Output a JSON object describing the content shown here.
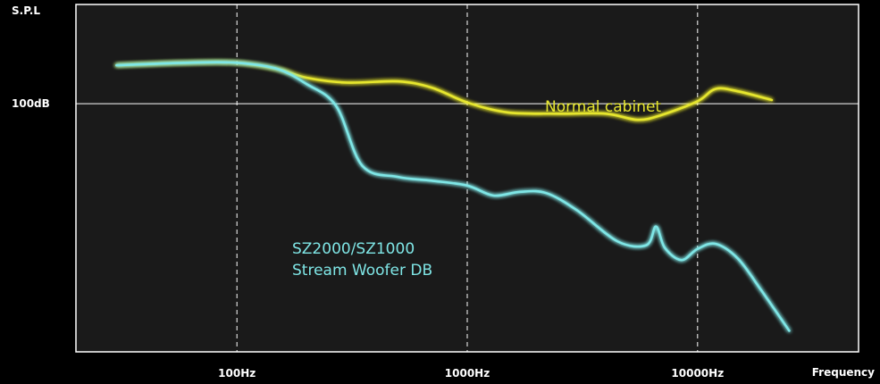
{
  "chart_data": {
    "type": "line",
    "xlabel": "Frequency",
    "ylabel": "S.P.L",
    "x_scale": "log",
    "xlim": [
      20,
      50000
    ],
    "x_ticks": [
      {
        "value": 100,
        "label": "100Hz"
      },
      {
        "value": 1000,
        "label": "1000Hz"
      },
      {
        "value": 10000,
        "label": "10000Hz"
      }
    ],
    "y_ticks": [
      {
        "value": 100,
        "label": "100dB"
      }
    ],
    "ylim": [
      80,
      108
    ],
    "grid": true,
    "colors": {
      "background": "#1a1a1a",
      "frame": "#ffffff",
      "grid": "#ffffff"
    },
    "series": [
      {
        "name": "Normal cabinet",
        "label_lines": [
          "Normal cabinet"
        ],
        "color": "#e6e62e",
        "x": [
          30,
          60,
          100,
          150,
          200,
          300,
          500,
          700,
          1000,
          1500,
          2500,
          4000,
          5500,
          7000,
          10000,
          12000,
          15000,
          21000
        ],
        "y": [
          103.1,
          103.3,
          103.3,
          102.8,
          102.1,
          101.7,
          101.8,
          101.3,
          100.1,
          99.3,
          99.2,
          99.2,
          98.7,
          99.1,
          100.2,
          101.2,
          101.0,
          100.3
        ]
      },
      {
        "name": "SZ2000/SZ1000 Stream Woofer DB",
        "label_lines": [
          "SZ2000/SZ1000",
          "Stream Woofer DB"
        ],
        "color": "#7fe6e6",
        "x": [
          30,
          60,
          100,
          150,
          200,
          270,
          350,
          500,
          700,
          1000,
          1300,
          1700,
          2200,
          3000,
          4500,
          6000,
          6600,
          7200,
          8500,
          10000,
          12000,
          15000,
          19000,
          25000
        ],
        "y": [
          103.1,
          103.3,
          103.3,
          102.8,
          101.6,
          99.8,
          95.0,
          94.1,
          93.8,
          93.4,
          92.6,
          92.9,
          92.8,
          91.4,
          88.9,
          88.6,
          90.1,
          88.4,
          87.4,
          88.3,
          88.7,
          87.5,
          84.9,
          81.7
        ]
      }
    ]
  }
}
